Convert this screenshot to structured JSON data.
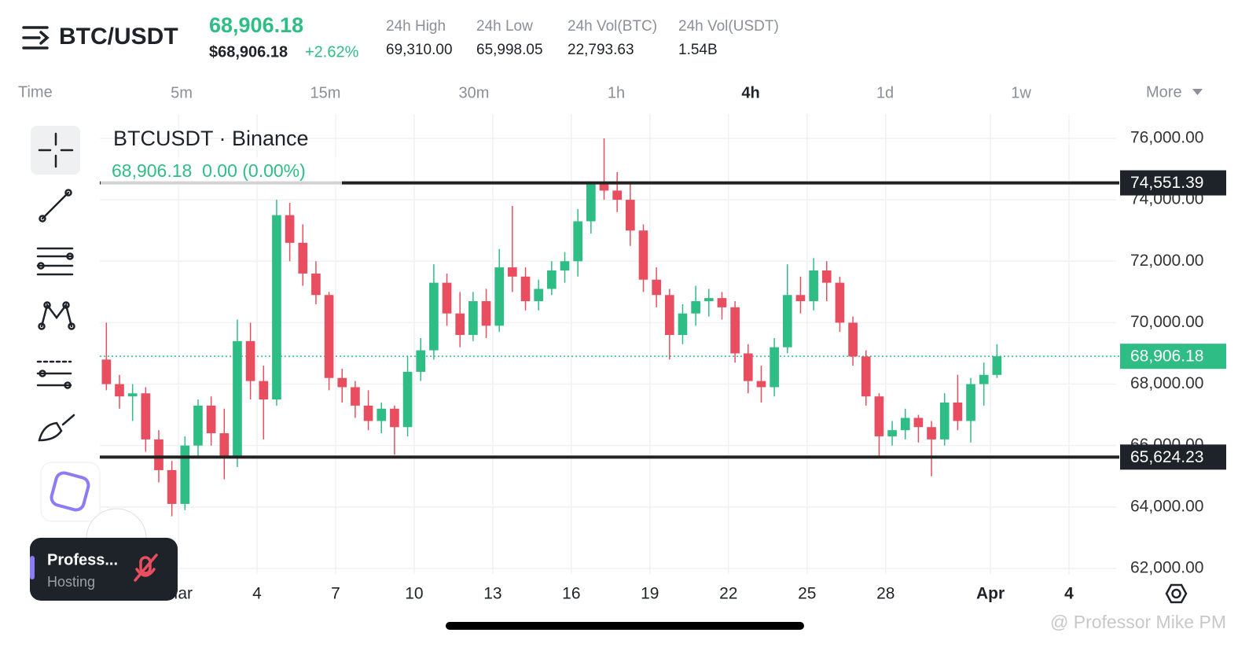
{
  "header": {
    "symbol": "BTC/USDT",
    "price": "68,906.18",
    "price_usd": "$68,906.18",
    "change": "+2.62%",
    "stats": [
      {
        "label": "24h High",
        "value": "69,310.00"
      },
      {
        "label": "24h Low",
        "value": "65,998.05"
      },
      {
        "label": "24h Vol(BTC)",
        "value": "22,793.63"
      },
      {
        "label": "24h Vol(USDT)",
        "value": "1.54B"
      }
    ]
  },
  "timeframes": {
    "label": "Time",
    "items": [
      "5m",
      "15m",
      "30m",
      "1h",
      "4h",
      "1d",
      "1w"
    ],
    "active": "4h",
    "more": "More"
  },
  "overlay": {
    "name": "Profess...",
    "role": "Hosting"
  },
  "watermark": "@ Professor Mike PM",
  "chart_data": {
    "type": "candlestick",
    "title": "BTCUSDT · Binance",
    "subtitle": "68,906.18  0.00 (0.00%)",
    "up_color": "#2ebd85",
    "down_color": "#e84e5f",
    "grid": true,
    "x": [
      -1.75,
      -1.25,
      -0.75,
      -0.25,
      0.25,
      0.75,
      1.25,
      1.75,
      2.25,
      2.75,
      3.25,
      3.75,
      4.25,
      4.75,
      5.25,
      5.75,
      6.25,
      6.75,
      7.25,
      7.75,
      8.25,
      8.75,
      9.25,
      9.75,
      10.25,
      10.75,
      11.25,
      11.75,
      12.25,
      12.75,
      13.25,
      13.75,
      14.25,
      14.75,
      15.25,
      15.75,
      16.25,
      16.75,
      17.25,
      17.75,
      18.25,
      18.75,
      19.25,
      19.75,
      20.25,
      20.75,
      21.25,
      21.75,
      22.25,
      22.75,
      23.25,
      23.75,
      24.25,
      24.75,
      25.25,
      25.75,
      26.25,
      26.75,
      27.25,
      27.75,
      28.25,
      28.75,
      29.25,
      29.75,
      30.25,
      30.75,
      31.25,
      31.75,
      32.25
    ],
    "open": [
      68800,
      68000,
      67600,
      67700,
      66200,
      65200,
      64100,
      66000,
      67300,
      66400,
      65600,
      69400,
      68100,
      67500,
      73500,
      72600,
      71600,
      70900,
      68200,
      67900,
      67300,
      66800,
      67200,
      66600,
      68400,
      69100,
      71300,
      70300,
      69600,
      70700,
      69900,
      71800,
      71500,
      70700,
      71100,
      71700,
      72000,
      73300,
      74500,
      74300,
      74000,
      73000,
      71400,
      70900,
      69600,
      70300,
      70700,
      70800,
      70500,
      69000,
      68100,
      67900,
      69200,
      70900,
      70700,
      71700,
      71300,
      70000,
      68900,
      67600,
      66300,
      66500,
      66900,
      66600,
      66200,
      67400,
      66800,
      68000,
      68300
    ],
    "high": [
      70000,
      68300,
      68000,
      67900,
      66500,
      65500,
      66300,
      67500,
      67600,
      67200,
      70100,
      70000,
      68600,
      74000,
      73900,
      73200,
      72000,
      71000,
      68500,
      68100,
      67800,
      67400,
      67300,
      68900,
      69500,
      71900,
      71600,
      71000,
      71000,
      71100,
      72400,
      73800,
      71800,
      71400,
      72000,
      72300,
      73700,
      74600,
      76000,
      74900,
      74600,
      73200,
      71800,
      71100,
      70600,
      71200,
      71100,
      71000,
      70700,
      69300,
      68600,
      69500,
      71900,
      71500,
      72100,
      72000,
      71500,
      70200,
      69100,
      67700,
      66800,
      67200,
      67000,
      66800,
      67700,
      68300,
      68200,
      68700,
      69300
    ],
    "low": [
      67800,
      67200,
      66800,
      65800,
      64800,
      63700,
      63900,
      65600,
      66000,
      64900,
      65300,
      67500,
      66200,
      67300,
      72000,
      71200,
      70600,
      67800,
      67400,
      66900,
      66500,
      66400,
      65700,
      66300,
      68100,
      68800,
      69900,
      69200,
      69400,
      69500,
      69700,
      71000,
      70400,
      70400,
      70900,
      71300,
      71500,
      72900,
      74000,
      73600,
      72500,
      71000,
      70500,
      68800,
      69300,
      69900,
      70200,
      70100,
      68700,
      67700,
      67400,
      67600,
      69000,
      70300,
      70400,
      70700,
      69700,
      68600,
      67300,
      65600,
      66000,
      66200,
      66100,
      65000,
      66000,
      66500,
      66100,
      67300,
      68200
    ],
    "close": [
      68000,
      67600,
      67700,
      66200,
      65200,
      64100,
      66000,
      67300,
      66400,
      65600,
      69400,
      68100,
      67500,
      73500,
      72600,
      71600,
      70900,
      68200,
      67900,
      67300,
      66800,
      67200,
      66600,
      68400,
      69100,
      71300,
      70300,
      69600,
      70700,
      69900,
      71800,
      71500,
      70700,
      71100,
      71700,
      72000,
      73300,
      74500,
      74300,
      74000,
      73000,
      71400,
      70900,
      69600,
      70300,
      70700,
      70800,
      70500,
      69000,
      68100,
      67900,
      69200,
      70900,
      70700,
      71700,
      71300,
      70000,
      68900,
      67600,
      66300,
      66500,
      66900,
      66600,
      66200,
      67400,
      66800,
      68000,
      68300,
      68906.18
    ],
    "xlim": [
      -2,
      36.8
    ],
    "xticks": [
      {
        "value": 1,
        "label": "Mar"
      },
      4,
      7,
      10,
      13,
      16,
      19,
      22,
      25,
      28,
      {
        "value": 32,
        "label": "Apr"
      },
      {
        "value": 35,
        "label": "4"
      }
    ],
    "ylim": [
      61820,
      76665
    ],
    "yticks": [
      {
        "value": 62000,
        "label": "62,000.00"
      },
      {
        "value": 64000,
        "label": "64,000.00"
      },
      {
        "value": 66000,
        "label": "66,000.00"
      },
      {
        "value": 68000,
        "label": "68,000.00"
      },
      {
        "value": 70000,
        "label": "70,000.00"
      },
      {
        "value": 72000,
        "label": "72,000.00"
      },
      {
        "value": 74000,
        "label": "74,000.00"
      },
      {
        "value": 76000,
        "label": "76,000.00"
      }
    ],
    "hlines": [
      {
        "value": 74551.39,
        "label": "74,551.39"
      },
      {
        "value": 65624.23,
        "label": "65,624.23"
      }
    ],
    "last_price": {
      "value": 68906.18,
      "label": "68,906.18"
    }
  }
}
